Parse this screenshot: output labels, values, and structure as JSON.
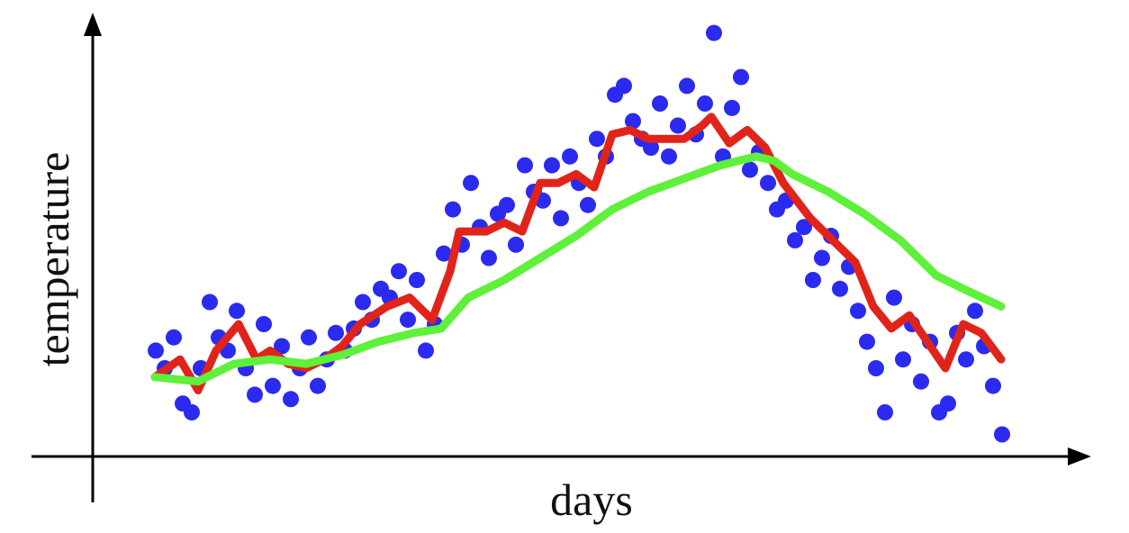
{
  "chart_data": {
    "type": "scatter",
    "xlabel": "days",
    "ylabel": "temperature",
    "xlim": [
      0,
      110
    ],
    "ylim": [
      0,
      100
    ],
    "series": [
      {
        "type": "scatter",
        "color": "#2a2af0",
        "x": [
          7,
          8,
          9,
          10,
          11,
          12,
          13,
          14,
          15,
          16,
          17,
          18,
          19,
          20,
          21,
          22,
          23,
          24,
          25,
          26,
          27,
          28,
          29,
          30,
          31,
          32,
          33,
          34,
          35,
          36,
          37,
          38,
          39,
          40,
          41,
          42,
          43,
          44,
          45,
          46,
          47,
          48,
          49,
          50,
          51,
          52,
          53,
          54,
          55,
          56,
          57,
          58,
          59,
          60,
          61,
          62,
          63,
          64,
          65,
          66,
          67,
          68,
          69,
          70,
          71,
          72,
          73,
          74,
          75,
          76,
          77,
          78,
          79,
          80,
          81,
          82,
          83,
          84,
          85,
          86,
          87,
          88,
          89,
          90,
          91,
          92,
          93,
          94,
          95,
          96,
          97,
          98,
          99,
          100,
          101
        ],
        "values": [
          24,
          20,
          27,
          12,
          10,
          20,
          35,
          27,
          24,
          33,
          20,
          14,
          30,
          16,
          25,
          13,
          20,
          27,
          16,
          22,
          28,
          24,
          29,
          35,
          31,
          38,
          36,
          42,
          31,
          40,
          24,
          30,
          46,
          56,
          48,
          62,
          52,
          45,
          55,
          57,
          48,
          66,
          60,
          58,
          66,
          54,
          68,
          62,
          57,
          72,
          68,
          82,
          84,
          76,
          72,
          70,
          80,
          68,
          75,
          84,
          73,
          80,
          96,
          68,
          79,
          86,
          65,
          69,
          62,
          56,
          58,
          49,
          52,
          40,
          45,
          50,
          38,
          43,
          33,
          26,
          20,
          10,
          36,
          22,
          30,
          17,
          26,
          10,
          12,
          28,
          22,
          33,
          25,
          16,
          5
        ]
      },
      {
        "type": "line",
        "color": "#e0241a",
        "x": [
          6.9,
          9.7,
          11.7,
          13.7,
          16.2,
          18.2,
          19.7,
          21.7,
          23.7,
          25.7,
          27.7,
          29.7,
          32.7,
          35.2,
          37.7,
          39.7,
          40.7,
          43.7,
          45.7,
          47.7,
          49.7,
          51.7,
          53.7,
          55.7,
          57.7,
          59.7,
          61.7,
          63.7,
          65.7,
          67.7,
          68.7,
          70.7,
          72.7,
          74.7,
          76.7,
          79.7,
          82.7,
          84.7,
          86.7,
          88.7,
          90.7,
          93.7,
          94.7,
          96.7,
          98.7,
          100.9
        ],
        "values": [
          18,
          22,
          15,
          24,
          30,
          22,
          24,
          21,
          20,
          22,
          25,
          30,
          34,
          36,
          31,
          42,
          51,
          51,
          53,
          51,
          62,
          62,
          64,
          61,
          73,
          74,
          72,
          72,
          72,
          75,
          77,
          71,
          74,
          70,
          62,
          54,
          48,
          44,
          34,
          29,
          32,
          23,
          20,
          30,
          28,
          22
        ]
      },
      {
        "type": "line",
        "color": "#5ef03a",
        "x": [
          6.9,
          11.7,
          15.7,
          19.7,
          23.7,
          27.7,
          31.7,
          35.7,
          38.7,
          41.7,
          45.7,
          49.7,
          53.7,
          57.7,
          61.7,
          65.7,
          69.7,
          73.7,
          75.7,
          77.7,
          81.7,
          85.7,
          89.7,
          93.7,
          96.7,
          100.9
        ],
        "values": [
          18,
          17,
          21,
          22,
          21,
          23,
          26,
          28,
          29,
          36,
          40,
          45,
          50,
          56,
          60,
          63,
          66,
          68,
          67,
          64,
          60,
          55,
          49,
          41,
          38,
          34
        ]
      }
    ]
  }
}
